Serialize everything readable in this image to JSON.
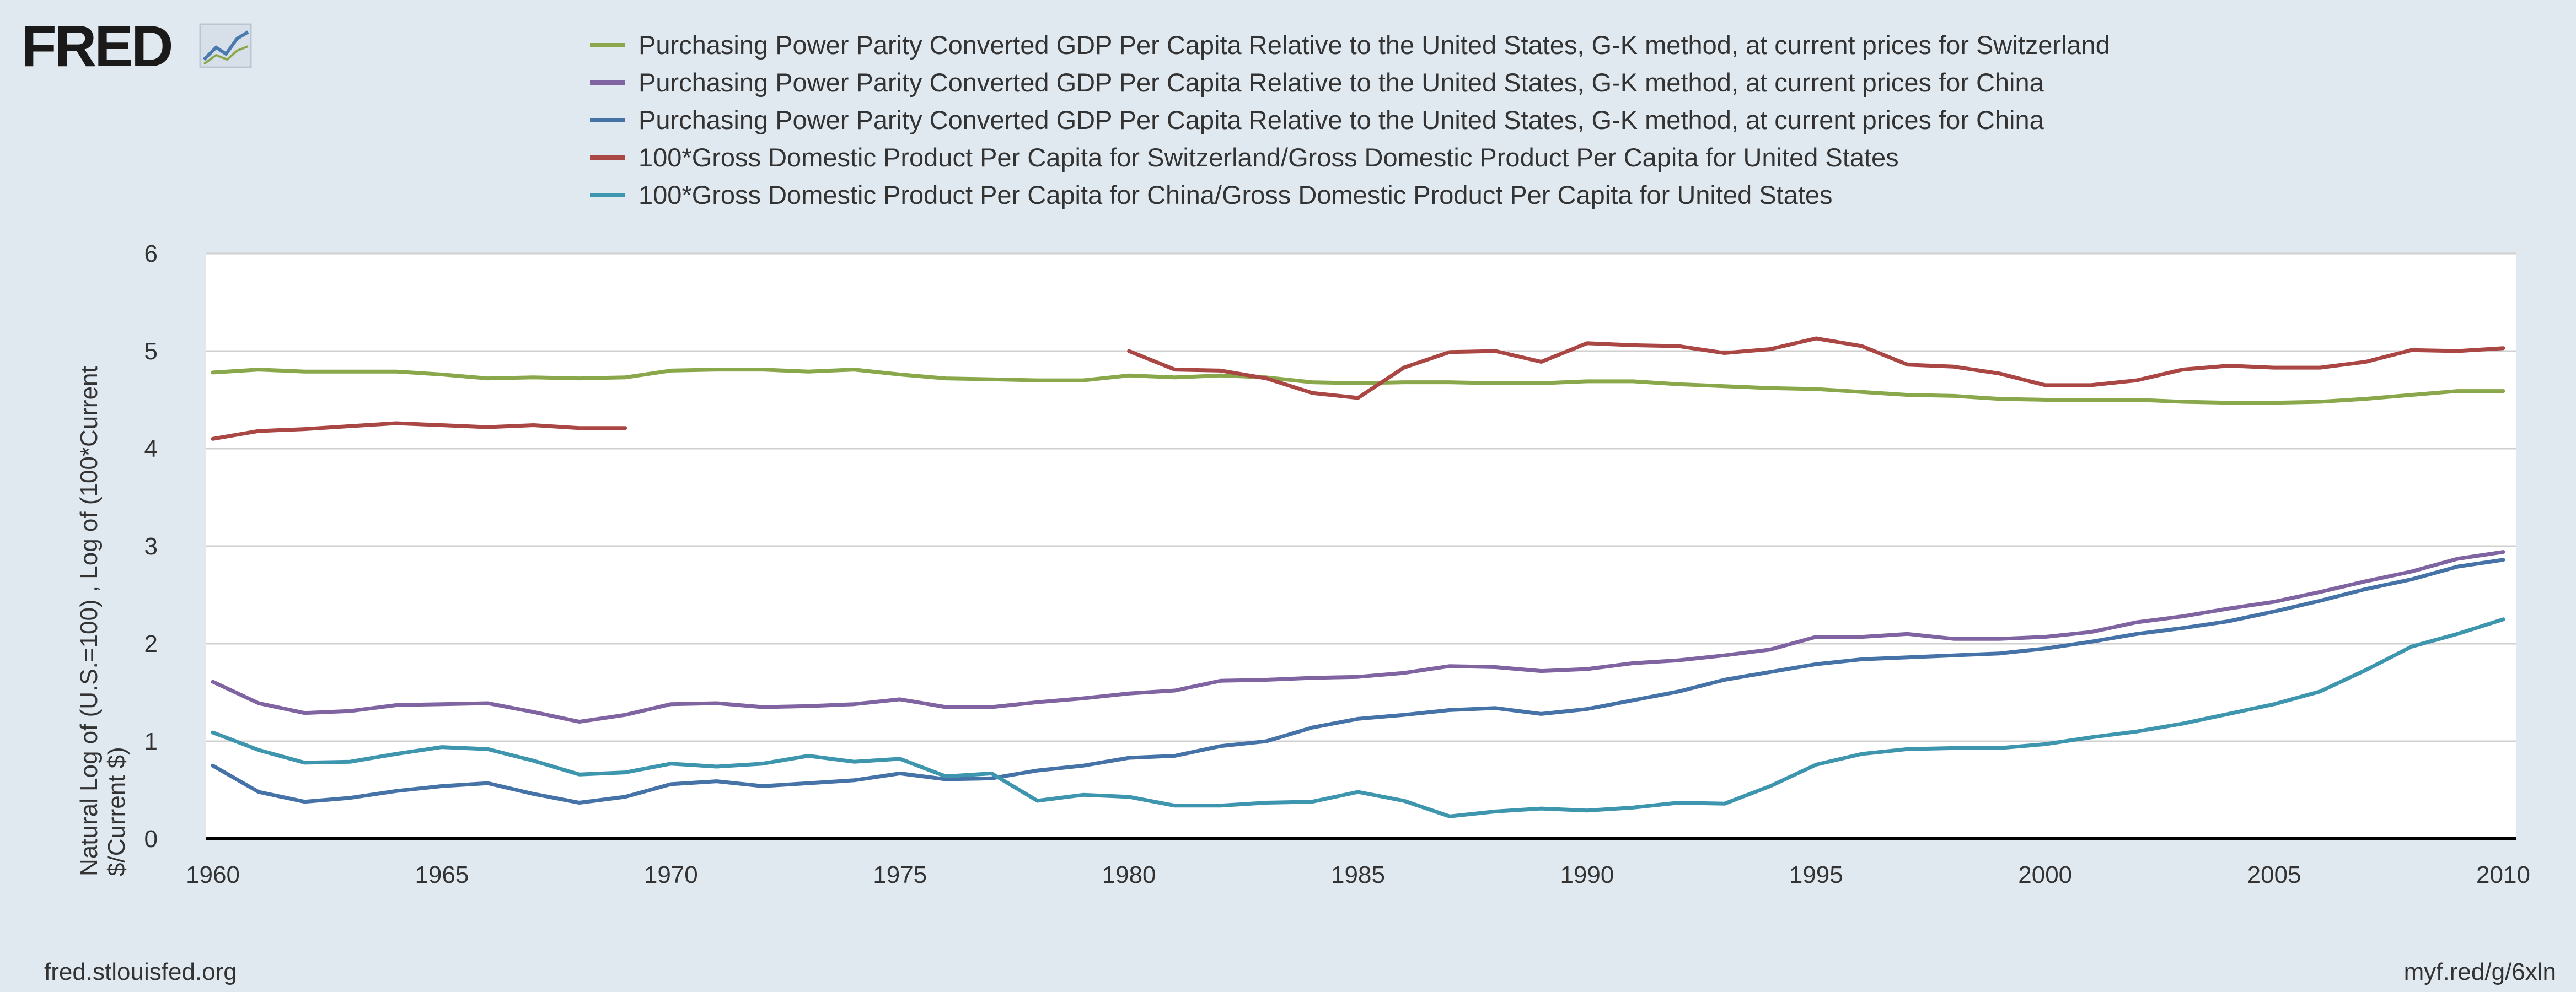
{
  "logo": {
    "text": "FRED",
    "icon": "line-chart-icon"
  },
  "footer": {
    "left": "fred.stlouisfed.org",
    "right": "myf.red/g/6xln"
  },
  "chart_data": {
    "type": "line",
    "title": "",
    "xlabel": "",
    "ylabel_lines": [
      "Natural Log of (U.S.=100) , Log of (100*Current",
      "$/Current $)"
    ],
    "xlim": [
      1960,
      2010
    ],
    "ylim": [
      0,
      6
    ],
    "xticks": [
      1960,
      1965,
      1970,
      1975,
      1980,
      1985,
      1990,
      1995,
      2000,
      2005,
      2010
    ],
    "yticks": [
      0,
      1,
      2,
      3,
      4,
      5,
      6
    ],
    "grid": "horizontal",
    "legend_position": "top",
    "series": [
      {
        "name": "Purchasing Power Parity Converted GDP Per Capita Relative to the United States, G-K method, at current prices for Switzerland",
        "color": "#8aa84b",
        "x": [
          1960,
          1961,
          1962,
          1963,
          1964,
          1965,
          1966,
          1967,
          1968,
          1969,
          1970,
          1971,
          1972,
          1973,
          1974,
          1975,
          1976,
          1977,
          1978,
          1979,
          1980,
          1981,
          1982,
          1983,
          1984,
          1985,
          1986,
          1987,
          1988,
          1989,
          1990,
          1991,
          1992,
          1993,
          1994,
          1995,
          1996,
          1997,
          1998,
          1999,
          2000,
          2001,
          2002,
          2003,
          2004,
          2005,
          2006,
          2007,
          2008,
          2009,
          2010
        ],
        "y": [
          4.78,
          4.81,
          4.79,
          4.79,
          4.79,
          4.76,
          4.72,
          4.73,
          4.72,
          4.73,
          4.8,
          4.81,
          4.81,
          4.79,
          4.81,
          4.76,
          4.72,
          4.71,
          4.7,
          4.7,
          4.75,
          4.73,
          4.75,
          4.73,
          4.68,
          4.67,
          4.68,
          4.68,
          4.67,
          4.67,
          4.69,
          4.69,
          4.66,
          4.64,
          4.62,
          4.61,
          4.58,
          4.55,
          4.54,
          4.51,
          4.5,
          4.5,
          4.5,
          4.48,
          4.47,
          4.47,
          4.48,
          4.51,
          4.55,
          4.59,
          4.59
        ]
      },
      {
        "name": "Purchasing Power Parity Converted GDP Per Capita Relative to the United States, G-K method, at current prices for China",
        "color": "#8064a2",
        "x": [
          1960,
          1961,
          1962,
          1963,
          1964,
          1965,
          1966,
          1967,
          1968,
          1969,
          1970,
          1971,
          1972,
          1973,
          1974,
          1975,
          1976,
          1977,
          1978,
          1979,
          1980,
          1981,
          1982,
          1983,
          1984,
          1985,
          1986,
          1987,
          1988,
          1989,
          1990,
          1991,
          1992,
          1993,
          1994,
          1995,
          1996,
          1997,
          1998,
          1999,
          2000,
          2001,
          2002,
          2003,
          2004,
          2005,
          2006,
          2007,
          2008,
          2009,
          2010
        ],
        "y": [
          1.61,
          1.39,
          1.29,
          1.31,
          1.37,
          1.38,
          1.39,
          1.3,
          1.2,
          1.27,
          1.38,
          1.39,
          1.35,
          1.36,
          1.38,
          1.43,
          1.35,
          1.35,
          1.4,
          1.44,
          1.49,
          1.52,
          1.62,
          1.63,
          1.65,
          1.66,
          1.7,
          1.77,
          1.76,
          1.72,
          1.74,
          1.8,
          1.83,
          1.88,
          1.94,
          2.07,
          2.07,
          2.1,
          2.05,
          2.05,
          2.07,
          2.12,
          2.22,
          2.28,
          2.36,
          2.43,
          2.53,
          2.64,
          2.74,
          2.87,
          2.94
        ]
      },
      {
        "name": "Purchasing Power Parity Converted GDP Per Capita Relative to the United States, G-K method, at current prices for China",
        "color": "#4572a7",
        "x": [
          1960,
          1961,
          1962,
          1963,
          1964,
          1965,
          1966,
          1967,
          1968,
          1969,
          1970,
          1971,
          1972,
          1973,
          1974,
          1975,
          1976,
          1977,
          1978,
          1979,
          1980,
          1981,
          1982,
          1983,
          1984,
          1985,
          1986,
          1987,
          1988,
          1989,
          1990,
          1991,
          1992,
          1993,
          1994,
          1995,
          1996,
          1997,
          1998,
          1999,
          2000,
          2001,
          2002,
          2003,
          2004,
          2005,
          2006,
          2007,
          2008,
          2009,
          2010
        ],
        "y": [
          0.75,
          0.48,
          0.38,
          0.42,
          0.49,
          0.54,
          0.57,
          0.46,
          0.37,
          0.43,
          0.56,
          0.59,
          0.54,
          0.57,
          0.6,
          0.67,
          0.61,
          0.62,
          0.7,
          0.75,
          0.83,
          0.85,
          0.95,
          1.0,
          1.14,
          1.23,
          1.27,
          1.32,
          1.34,
          1.28,
          1.33,
          1.42,
          1.51,
          1.63,
          1.71,
          1.79,
          1.84,
          1.86,
          1.88,
          1.9,
          1.95,
          2.02,
          2.1,
          2.16,
          2.23,
          2.33,
          2.44,
          2.56,
          2.66,
          2.79,
          2.86
        ]
      },
      {
        "name": "100*Gross Domestic Product Per Capita for Switzerland/Gross Domestic Product Per Capita for United States",
        "color": "#aa4643",
        "segments": [
          {
            "x": [
              1960,
              1961,
              1962,
              1963,
              1964,
              1965,
              1966,
              1967,
              1968,
              1969
            ],
            "y": [
              4.1,
              4.18,
              4.2,
              4.23,
              4.26,
              4.24,
              4.22,
              4.24,
              4.21,
              4.21
            ]
          },
          {
            "x": [
              1980,
              1981,
              1982,
              1983,
              1984,
              1985,
              1986,
              1987,
              1988,
              1989,
              1990,
              1991,
              1992,
              1993,
              1994,
              1995,
              1996,
              1997,
              1998,
              1999,
              2000,
              2001,
              2002,
              2003,
              2004,
              2005,
              2006,
              2007,
              2008,
              2009,
              2010
            ],
            "y": [
              5.0,
              4.81,
              4.8,
              4.72,
              4.57,
              4.52,
              4.83,
              4.99,
              5.0,
              4.89,
              5.08,
              5.06,
              5.05,
              4.98,
              5.02,
              5.13,
              5.05,
              4.86,
              4.84,
              4.77,
              4.65,
              4.65,
              4.7,
              4.81,
              4.85,
              4.83,
              4.83,
              4.89,
              5.01,
              5.0,
              5.03
            ]
          }
        ]
      },
      {
        "name": "100*Gross Domestic Product Per Capita for China/Gross Domestic Product Per Capita for United States",
        "color": "#3d96ae",
        "x": [
          1960,
          1961,
          1962,
          1963,
          1964,
          1965,
          1966,
          1967,
          1968,
          1969,
          1970,
          1971,
          1972,
          1973,
          1974,
          1975,
          1976,
          1977,
          1978,
          1979,
          1980,
          1981,
          1982,
          1983,
          1984,
          1985,
          1986,
          1987,
          1988,
          1989,
          1990,
          1991,
          1992,
          1993,
          1994,
          1995,
          1996,
          1997,
          1998,
          1999,
          2000,
          2001,
          2002,
          2003,
          2004,
          2005,
          2006,
          2007,
          2008,
          2009,
          2010
        ],
        "y": [
          1.09,
          0.91,
          0.78,
          0.79,
          0.87,
          0.94,
          0.92,
          0.8,
          0.66,
          0.68,
          0.77,
          0.74,
          0.77,
          0.85,
          0.79,
          0.82,
          0.64,
          0.67,
          0.39,
          0.45,
          0.43,
          0.34,
          0.34,
          0.37,
          0.38,
          0.48,
          0.39,
          0.23,
          0.28,
          0.31,
          0.29,
          0.32,
          0.37,
          0.36,
          0.54,
          0.76,
          0.87,
          0.92,
          0.93,
          0.93,
          0.97,
          1.04,
          1.1,
          1.18,
          1.28,
          1.38,
          1.51,
          1.73,
          1.97,
          2.1,
          2.25
        ]
      }
    ]
  }
}
